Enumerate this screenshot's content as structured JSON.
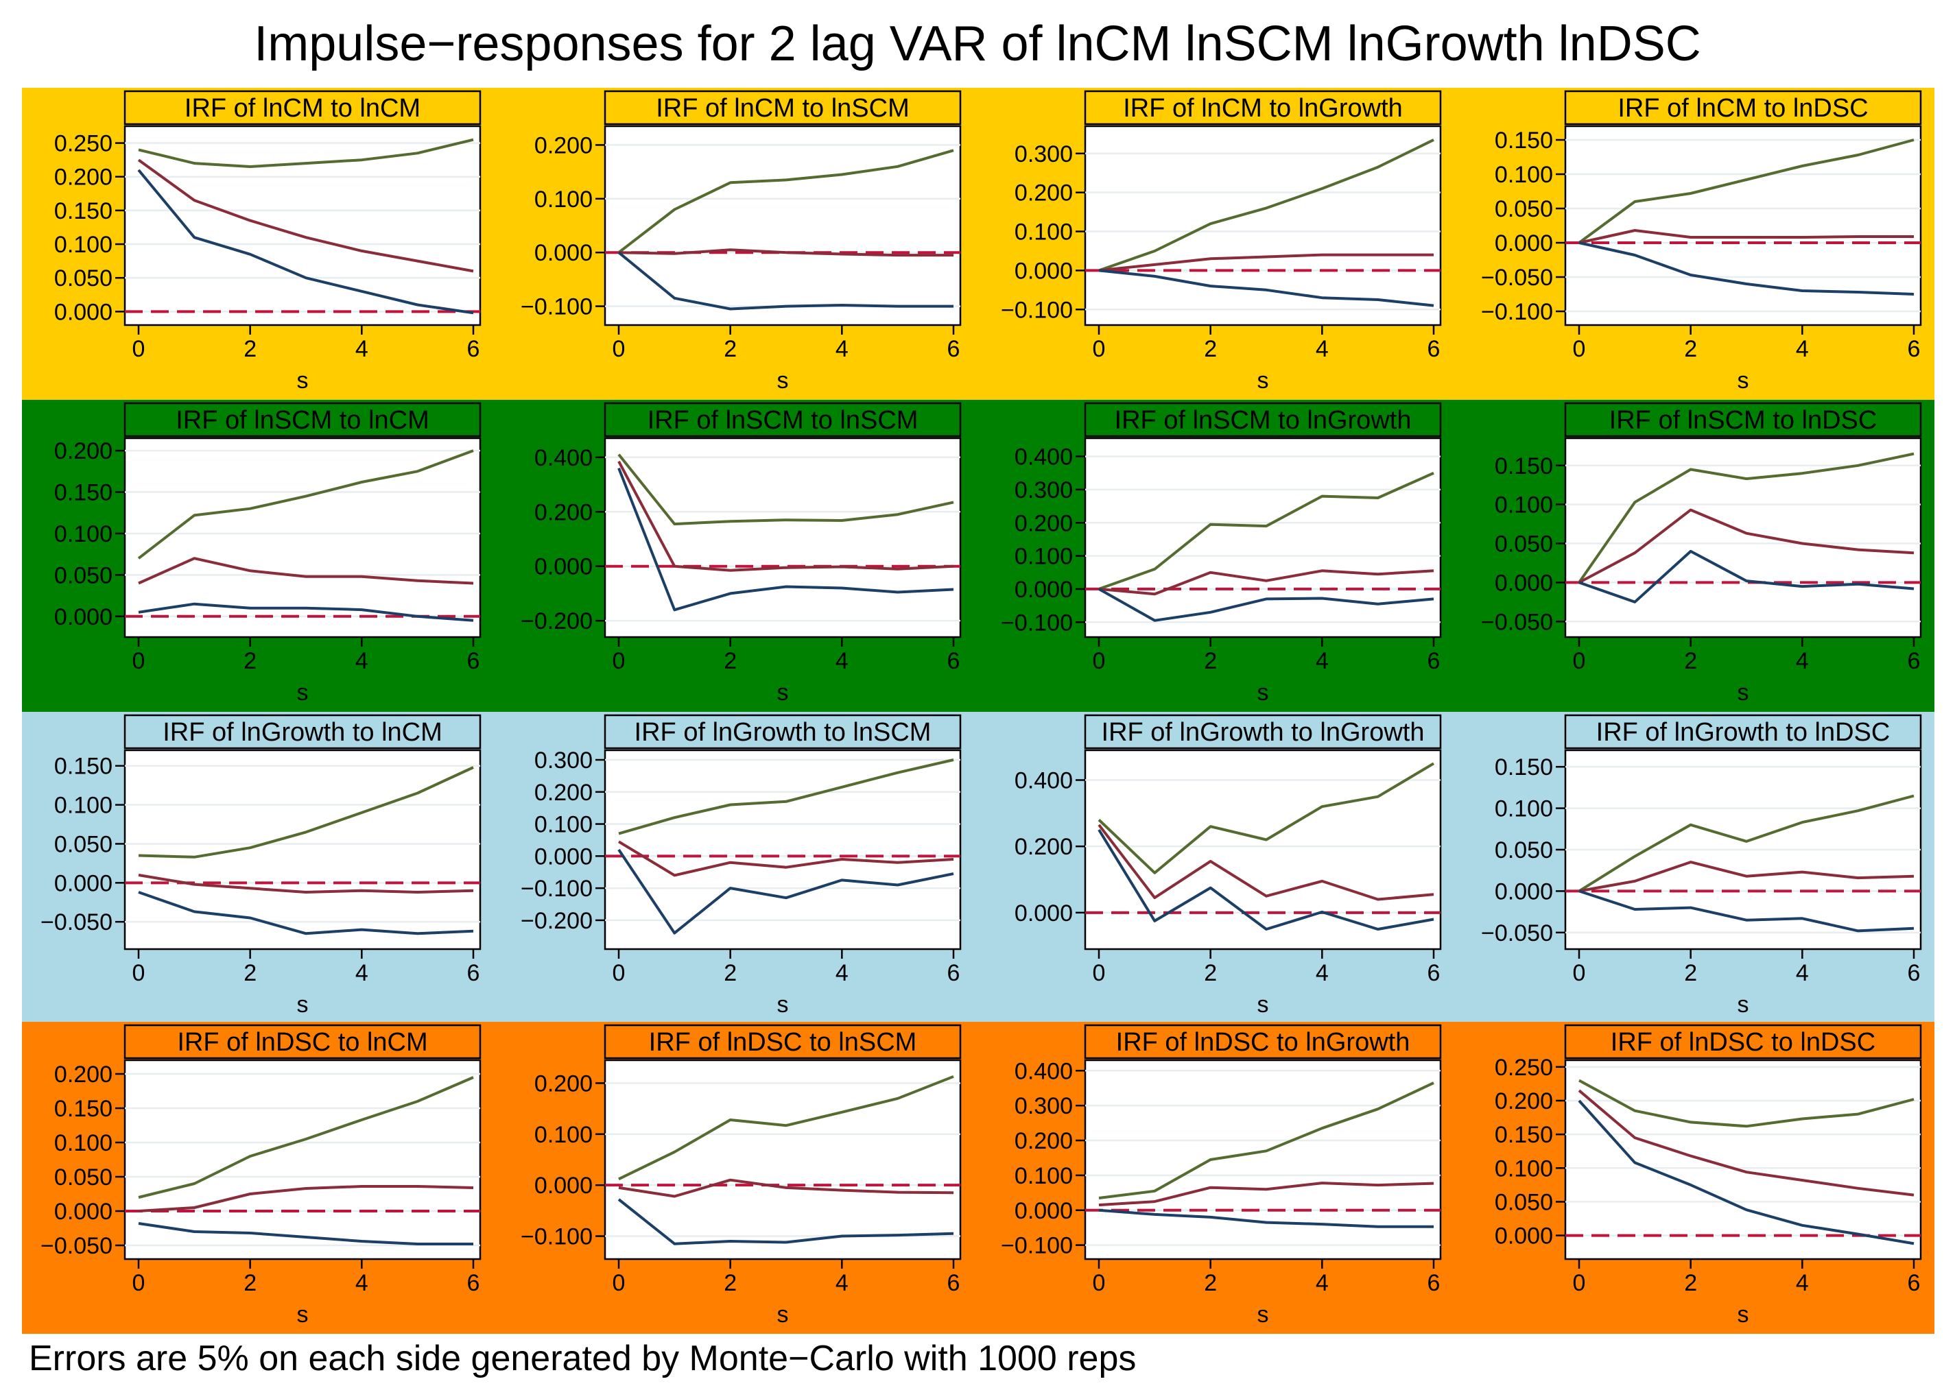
{
  "title": "Impulse−responses for 2 lag VAR of lnCM lnSCM lnGrowth lnDSC",
  "footnote": "Errors are 5% on each side generated by Monte−Carlo with 1000 reps",
  "colors": {
    "row_backgrounds": [
      "#ffcc00",
      "#008000",
      "#add8e6",
      "#ff8000"
    ],
    "upper": "#556b2f",
    "irf": "#8b2c3a",
    "lower": "#1b3f66",
    "zero_line": "#c0143c"
  },
  "chart_data": [
    {
      "type": "line",
      "title": "IRF of lnCM to lnCM",
      "xlabel": "s",
      "x": [
        0,
        1,
        2,
        3,
        4,
        5,
        6
      ],
      "ylim": [
        -0.02,
        0.275
      ],
      "yticks": [
        0,
        0.05,
        0.1,
        0.15,
        0.2,
        0.25
      ],
      "ytick_labels": [
        "0.000",
        "0.050",
        "0.100",
        "0.150",
        "0.200",
        "0.250"
      ],
      "xticks": [
        0,
        2,
        4,
        6
      ],
      "series": [
        {
          "name": "upper",
          "values": [
            0.24,
            0.22,
            0.215,
            0.22,
            0.225,
            0.235,
            0.255
          ]
        },
        {
          "name": "irf",
          "values": [
            0.225,
            0.165,
            0.135,
            0.11,
            0.09,
            0.075,
            0.06
          ]
        },
        {
          "name": "lower",
          "values": [
            0.21,
            0.11,
            0.085,
            0.05,
            0.03,
            0.01,
            -0.002
          ]
        }
      ]
    },
    {
      "type": "line",
      "title": "IRF of lnCM to lnSCM",
      "xlabel": "s",
      "x": [
        0,
        1,
        2,
        3,
        4,
        5,
        6
      ],
      "ylim": [
        -0.135,
        0.235
      ],
      "yticks": [
        -0.1,
        0,
        0.1,
        0.2
      ],
      "ytick_labels": [
        "−0.100",
        "0.000",
        "0.100",
        "0.200"
      ],
      "xticks": [
        0,
        2,
        4,
        6
      ],
      "series": [
        {
          "name": "upper",
          "values": [
            0,
            0.08,
            0.13,
            0.135,
            0.145,
            0.16,
            0.19
          ]
        },
        {
          "name": "irf",
          "values": [
            0,
            -0.002,
            0.005,
            0,
            -0.003,
            -0.005,
            -0.005
          ]
        },
        {
          "name": "lower",
          "values": [
            0,
            -0.085,
            -0.105,
            -0.1,
            -0.098,
            -0.1,
            -0.1
          ]
        }
      ]
    },
    {
      "type": "line",
      "title": "IRF of lnCM to lnGrowth",
      "xlabel": "s",
      "x": [
        0,
        1,
        2,
        3,
        4,
        5,
        6
      ],
      "ylim": [
        -0.14,
        0.37
      ],
      "yticks": [
        -0.1,
        0,
        0.1,
        0.2,
        0.3
      ],
      "ytick_labels": [
        "−0.100",
        "0.000",
        "0.100",
        "0.200",
        "0.300"
      ],
      "xticks": [
        0,
        2,
        4,
        6
      ],
      "series": [
        {
          "name": "upper",
          "values": [
            0,
            0.05,
            0.12,
            0.16,
            0.21,
            0.265,
            0.335
          ]
        },
        {
          "name": "irf",
          "values": [
            0,
            0.015,
            0.03,
            0.035,
            0.04,
            0.04,
            0.04
          ]
        },
        {
          "name": "lower",
          "values": [
            0,
            -0.015,
            -0.04,
            -0.05,
            -0.07,
            -0.075,
            -0.09
          ]
        }
      ]
    },
    {
      "type": "line",
      "title": "IRF of lnCM to lnDSC",
      "xlabel": "s",
      "x": [
        0,
        1,
        2,
        3,
        4,
        5,
        6
      ],
      "ylim": [
        -0.12,
        0.17
      ],
      "yticks": [
        -0.1,
        -0.05,
        0,
        0.05,
        0.1,
        0.15
      ],
      "ytick_labels": [
        "−0.100",
        "−0.050",
        "0.000",
        "0.050",
        "0.100",
        "0.150"
      ],
      "xticks": [
        0,
        2,
        4,
        6
      ],
      "series": [
        {
          "name": "upper",
          "values": [
            0,
            0.06,
            0.072,
            0.092,
            0.112,
            0.128,
            0.15
          ]
        },
        {
          "name": "irf",
          "values": [
            0,
            0.018,
            0.008,
            0.008,
            0.008,
            0.009,
            0.009
          ]
        },
        {
          "name": "lower",
          "values": [
            0,
            -0.018,
            -0.047,
            -0.06,
            -0.07,
            -0.072,
            -0.075
          ]
        }
      ]
    },
    {
      "type": "line",
      "title": "IRF of lnSCM to lnCM",
      "xlabel": "s",
      "x": [
        0,
        1,
        2,
        3,
        4,
        5,
        6
      ],
      "ylim": [
        -0.025,
        0.215
      ],
      "yticks": [
        0,
        0.05,
        0.1,
        0.15,
        0.2
      ],
      "ytick_labels": [
        "0.000",
        "0.050",
        "0.100",
        "0.150",
        "0.200"
      ],
      "xticks": [
        0,
        2,
        4,
        6
      ],
      "series": [
        {
          "name": "upper",
          "values": [
            0.07,
            0.122,
            0.13,
            0.145,
            0.162,
            0.175,
            0.2
          ]
        },
        {
          "name": "irf",
          "values": [
            0.04,
            0.07,
            0.055,
            0.048,
            0.048,
            0.043,
            0.04
          ]
        },
        {
          "name": "lower",
          "values": [
            0.005,
            0.015,
            0.01,
            0.01,
            0.008,
            0,
            -0.005
          ]
        }
      ]
    },
    {
      "type": "line",
      "title": "IRF of lnSCM to lnSCM",
      "xlabel": "s",
      "x": [
        0,
        1,
        2,
        3,
        4,
        5,
        6
      ],
      "ylim": [
        -0.26,
        0.47
      ],
      "yticks": [
        -0.2,
        0,
        0.2,
        0.4
      ],
      "ytick_labels": [
        "−0.200",
        "0.000",
        "0.200",
        "0.400"
      ],
      "xticks": [
        0,
        2,
        4,
        6
      ],
      "series": [
        {
          "name": "upper",
          "values": [
            0.41,
            0.155,
            0.165,
            0.17,
            0.168,
            0.19,
            0.235
          ]
        },
        {
          "name": "irf",
          "values": [
            0.385,
            0,
            -0.015,
            -0.005,
            -0.002,
            -0.01,
            0
          ]
        },
        {
          "name": "lower",
          "values": [
            0.36,
            -0.16,
            -0.1,
            -0.075,
            -0.08,
            -0.095,
            -0.085
          ]
        }
      ]
    },
    {
      "type": "line",
      "title": "IRF of lnSCM to lnGrowth",
      "xlabel": "s",
      "x": [
        0,
        1,
        2,
        3,
        4,
        5,
        6
      ],
      "ylim": [
        -0.145,
        0.455
      ],
      "yticks": [
        -0.1,
        0,
        0.1,
        0.2,
        0.3,
        0.4
      ],
      "ytick_labels": [
        "−0.100",
        "0.000",
        "0.100",
        "0.200",
        "0.300",
        "0.400"
      ],
      "xticks": [
        0,
        2,
        4,
        6
      ],
      "series": [
        {
          "name": "upper",
          "values": [
            0,
            0.06,
            0.195,
            0.19,
            0.28,
            0.275,
            0.35
          ]
        },
        {
          "name": "irf",
          "values": [
            0,
            -0.015,
            0.05,
            0.025,
            0.055,
            0.045,
            0.055
          ]
        },
        {
          "name": "lower",
          "values": [
            0,
            -0.095,
            -0.07,
            -0.03,
            -0.028,
            -0.045,
            -0.03
          ]
        }
      ]
    },
    {
      "type": "line",
      "title": "IRF of lnSCM to lnDSC",
      "xlabel": "s",
      "x": [
        0,
        1,
        2,
        3,
        4,
        5,
        6
      ],
      "ylim": [
        -0.07,
        0.185
      ],
      "yticks": [
        -0.05,
        0,
        0.05,
        0.1,
        0.15
      ],
      "ytick_labels": [
        "−0.050",
        "0.000",
        "0.050",
        "0.100",
        "0.150"
      ],
      "xticks": [
        0,
        2,
        4,
        6
      ],
      "series": [
        {
          "name": "upper",
          "values": [
            0,
            0.103,
            0.145,
            0.133,
            0.14,
            0.15,
            0.165
          ]
        },
        {
          "name": "irf",
          "values": [
            0,
            0.038,
            0.093,
            0.063,
            0.05,
            0.042,
            0.038
          ]
        },
        {
          "name": "lower",
          "values": [
            0,
            -0.025,
            0.04,
            0.002,
            -0.005,
            -0.002,
            -0.008
          ]
        }
      ]
    },
    {
      "type": "line",
      "title": "IRF of lnGrowth to lnCM",
      "xlabel": "s",
      "x": [
        0,
        1,
        2,
        3,
        4,
        5,
        6
      ],
      "ylim": [
        -0.085,
        0.17
      ],
      "yticks": [
        -0.05,
        0,
        0.05,
        0.1,
        0.15
      ],
      "ytick_labels": [
        "−0.050",
        "0.000",
        "0.050",
        "0.100",
        "0.150"
      ],
      "xticks": [
        0,
        2,
        4,
        6
      ],
      "series": [
        {
          "name": "upper",
          "values": [
            0.035,
            0.033,
            0.045,
            0.065,
            0.09,
            0.115,
            0.148
          ]
        },
        {
          "name": "irf",
          "values": [
            0.01,
            -0.002,
            -0.007,
            -0.012,
            -0.01,
            -0.012,
            -0.01
          ]
        },
        {
          "name": "lower",
          "values": [
            -0.012,
            -0.037,
            -0.045,
            -0.065,
            -0.06,
            -0.065,
            -0.062
          ]
        }
      ]
    },
    {
      "type": "line",
      "title": "IRF of lnGrowth to lnSCM",
      "xlabel": "s",
      "x": [
        0,
        1,
        2,
        3,
        4,
        5,
        6
      ],
      "ylim": [
        -0.29,
        0.33
      ],
      "yticks": [
        -0.2,
        -0.1,
        0,
        0.1,
        0.2,
        0.3
      ],
      "ytick_labels": [
        "−0.200",
        "−0.100",
        "0.000",
        "0.100",
        "0.200",
        "0.300"
      ],
      "xticks": [
        0,
        2,
        4,
        6
      ],
      "series": [
        {
          "name": "upper",
          "values": [
            0.07,
            0.12,
            0.16,
            0.17,
            0.215,
            0.26,
            0.3
          ]
        },
        {
          "name": "irf",
          "values": [
            0.045,
            -0.06,
            -0.02,
            -0.035,
            -0.01,
            -0.02,
            -0.01
          ]
        },
        {
          "name": "lower",
          "values": [
            0.02,
            -0.24,
            -0.1,
            -0.13,
            -0.075,
            -0.09,
            -0.055
          ]
        }
      ]
    },
    {
      "type": "line",
      "title": "IRF of lnGrowth to lnGrowth",
      "xlabel": "s",
      "x": [
        0,
        1,
        2,
        3,
        4,
        5,
        6
      ],
      "ylim": [
        -0.11,
        0.49
      ],
      "yticks": [
        0,
        0.2,
        0.4
      ],
      "ytick_labels": [
        "0.000",
        "0.200",
        "0.400"
      ],
      "xticks": [
        0,
        2,
        4,
        6
      ],
      "series": [
        {
          "name": "upper",
          "values": [
            0.28,
            0.12,
            0.26,
            0.22,
            0.32,
            0.35,
            0.45
          ]
        },
        {
          "name": "irf",
          "values": [
            0.265,
            0.045,
            0.155,
            0.05,
            0.095,
            0.04,
            0.055
          ]
        },
        {
          "name": "lower",
          "values": [
            0.25,
            -0.025,
            0.075,
            -0.05,
            0.002,
            -0.05,
            -0.02
          ]
        }
      ]
    },
    {
      "type": "line",
      "title": "IRF of lnGrowth to lnDSC",
      "xlabel": "s",
      "x": [
        0,
        1,
        2,
        3,
        4,
        5,
        6
      ],
      "ylim": [
        -0.07,
        0.17
      ],
      "yticks": [
        -0.05,
        0,
        0.05,
        0.1,
        0.15
      ],
      "ytick_labels": [
        "−0.050",
        "0.000",
        "0.050",
        "0.100",
        "0.150"
      ],
      "xticks": [
        0,
        2,
        4,
        6
      ],
      "series": [
        {
          "name": "upper",
          "values": [
            0,
            0.042,
            0.08,
            0.06,
            0.083,
            0.097,
            0.115
          ]
        },
        {
          "name": "irf",
          "values": [
            0,
            0.012,
            0.035,
            0.018,
            0.023,
            0.016,
            0.018
          ]
        },
        {
          "name": "lower",
          "values": [
            0,
            -0.022,
            -0.02,
            -0.035,
            -0.033,
            -0.048,
            -0.045
          ]
        }
      ]
    },
    {
      "type": "line",
      "title": "IRF of lnDSC to lnCM",
      "xlabel": "s",
      "x": [
        0,
        1,
        2,
        3,
        4,
        5,
        6
      ],
      "ylim": [
        -0.07,
        0.22
      ],
      "yticks": [
        -0.05,
        0,
        0.05,
        0.1,
        0.15,
        0.2
      ],
      "ytick_labels": [
        "−0.050",
        "0.000",
        "0.050",
        "0.100",
        "0.150",
        "0.200"
      ],
      "xticks": [
        0,
        2,
        4,
        6
      ],
      "series": [
        {
          "name": "upper",
          "values": [
            0.02,
            0.04,
            0.08,
            0.105,
            0.133,
            0.16,
            0.195
          ]
        },
        {
          "name": "irf",
          "values": [
            0,
            0.005,
            0.025,
            0.033,
            0.036,
            0.036,
            0.034
          ]
        },
        {
          "name": "lower",
          "values": [
            -0.018,
            -0.03,
            -0.032,
            -0.038,
            -0.044,
            -0.048,
            -0.048
          ]
        }
      ]
    },
    {
      "type": "line",
      "title": "IRF of lnDSC to lnSCM",
      "xlabel": "s",
      "x": [
        0,
        1,
        2,
        3,
        4,
        5,
        6
      ],
      "ylim": [
        -0.145,
        0.245
      ],
      "yticks": [
        -0.1,
        0,
        0.1,
        0.2
      ],
      "ytick_labels": [
        "−0.100",
        "0.000",
        "0.100",
        "0.200"
      ],
      "xticks": [
        0,
        2,
        4,
        6
      ],
      "series": [
        {
          "name": "upper",
          "values": [
            0.012,
            0.065,
            0.128,
            0.117,
            0.143,
            0.17,
            0.213
          ]
        },
        {
          "name": "irf",
          "values": [
            -0.005,
            -0.022,
            0.01,
            -0.005,
            -0.01,
            -0.014,
            -0.015
          ]
        },
        {
          "name": "lower",
          "values": [
            -0.028,
            -0.115,
            -0.11,
            -0.112,
            -0.1,
            -0.098,
            -0.095
          ]
        }
      ]
    },
    {
      "type": "line",
      "title": "IRF of lnDSC to lnGrowth",
      "xlabel": "s",
      "x": [
        0,
        1,
        2,
        3,
        4,
        5,
        6
      ],
      "ylim": [
        -0.14,
        0.43
      ],
      "yticks": [
        -0.1,
        0,
        0.1,
        0.2,
        0.3,
        0.4
      ],
      "ytick_labels": [
        "−0.100",
        "0.000",
        "0.100",
        "0.200",
        "0.300",
        "0.400"
      ],
      "xticks": [
        0,
        2,
        4,
        6
      ],
      "series": [
        {
          "name": "upper",
          "values": [
            0.035,
            0.055,
            0.145,
            0.17,
            0.235,
            0.29,
            0.365
          ]
        },
        {
          "name": "irf",
          "values": [
            0.015,
            0.025,
            0.065,
            0.06,
            0.078,
            0.072,
            0.077
          ]
        },
        {
          "name": "lower",
          "values": [
            0,
            -0.012,
            -0.02,
            -0.035,
            -0.04,
            -0.047,
            -0.047
          ]
        }
      ]
    },
    {
      "type": "line",
      "title": "IRF of lnDSC to lnDSC",
      "xlabel": "s",
      "x": [
        0,
        1,
        2,
        3,
        4,
        5,
        6
      ],
      "ylim": [
        -0.035,
        0.26
      ],
      "yticks": [
        0,
        0.05,
        0.1,
        0.15,
        0.2,
        0.25
      ],
      "ytick_labels": [
        "0.000",
        "0.050",
        "0.100",
        "0.150",
        "0.200",
        "0.250"
      ],
      "xticks": [
        0,
        2,
        4,
        6
      ],
      "series": [
        {
          "name": "upper",
          "values": [
            0.23,
            0.185,
            0.168,
            0.162,
            0.173,
            0.18,
            0.202
          ]
        },
        {
          "name": "irf",
          "values": [
            0.215,
            0.145,
            0.118,
            0.094,
            0.082,
            0.07,
            0.06
          ]
        },
        {
          "name": "lower",
          "values": [
            0.2,
            0.108,
            0.075,
            0.038,
            0.015,
            0.002,
            -0.012
          ]
        }
      ]
    }
  ]
}
